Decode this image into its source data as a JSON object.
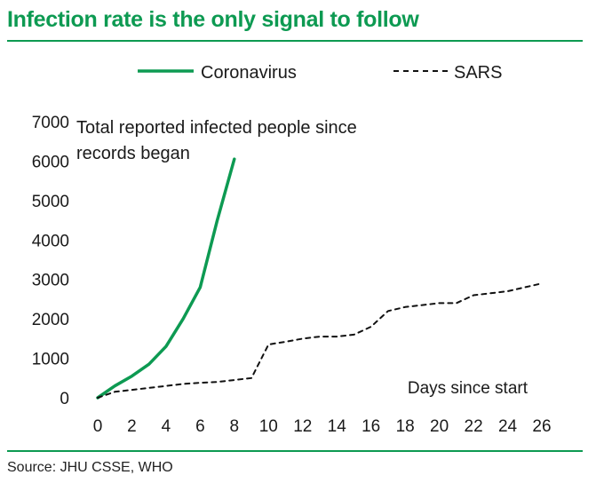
{
  "title": "Infection rate is the only signal to follow",
  "source": "Source: JHU CSSE, WHO",
  "colors": {
    "accent": "#0d9a52",
    "sars": "#111111",
    "text": "#1a1a1a"
  },
  "chart_data": {
    "type": "line",
    "title": "Infection rate is the only signal to follow",
    "annotation": [
      "Total reported infected people since",
      "records began"
    ],
    "xlabel": "Days since start",
    "ylabel": "",
    "xlim": [
      0,
      26
    ],
    "ylim": [
      0,
      7000
    ],
    "xticks": [
      0,
      2,
      4,
      6,
      8,
      10,
      12,
      14,
      16,
      18,
      20,
      22,
      24,
      26
    ],
    "yticks": [
      0,
      1000,
      2000,
      3000,
      4000,
      5000,
      6000,
      7000
    ],
    "grid": false,
    "legend_position": "top",
    "series": [
      {
        "name": "Coronavirus",
        "style": "solid",
        "color": "#0d9a52",
        "x": [
          0,
          1,
          2,
          3,
          4,
          5,
          6,
          7,
          8
        ],
        "y": [
          0,
          300,
          550,
          850,
          1300,
          2000,
          2800,
          4500,
          6050
        ]
      },
      {
        "name": "SARS",
        "style": "dashed",
        "color": "#111111",
        "x": [
          0,
          1,
          2,
          3,
          4,
          5,
          6,
          7,
          8,
          9,
          10,
          11,
          12,
          13,
          14,
          15,
          16,
          17,
          18,
          19,
          20,
          21,
          22,
          23,
          24,
          25,
          26
        ],
        "y": [
          0,
          150,
          200,
          250,
          300,
          350,
          380,
          400,
          450,
          500,
          1350,
          1420,
          1500,
          1550,
          1550,
          1600,
          1800,
          2200,
          2300,
          2350,
          2400,
          2400,
          2600,
          2650,
          2700,
          2800,
          2900
        ]
      }
    ]
  }
}
